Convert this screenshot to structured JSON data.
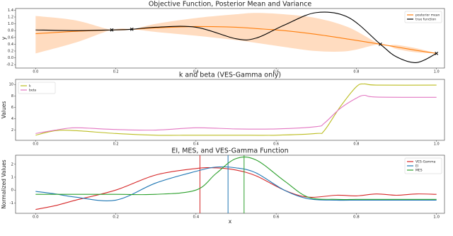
{
  "chart_data": [
    {
      "type": "line",
      "title": "Objective Function, Posterior Mean and Variance",
      "ylabel": "y",
      "x": [
        0,
        0.1,
        0.19,
        0.24,
        0.3,
        0.4,
        0.5,
        0.55,
        0.62,
        0.7,
        0.78,
        0.86,
        0.9,
        0.95,
        1.0
      ],
      "series": [
        {
          "name": "posterior mean",
          "color": "#ff7f0e",
          "values": [
            0.71,
            0.78,
            0.82,
            0.84,
            0.88,
            0.92,
            0.9,
            0.86,
            0.8,
            0.69,
            0.55,
            0.4,
            0.32,
            0.22,
            0.13
          ]
        },
        {
          "name": "true function",
          "color": "#000000",
          "values": [
            0.82,
            0.8,
            0.82,
            0.84,
            0.9,
            0.9,
            0.56,
            0.58,
            0.96,
            1.33,
            1.19,
            0.4,
            0.03,
            -0.14,
            0.13
          ]
        }
      ],
      "band": {
        "color": "#ffd3b0",
        "upper": [
          1.23,
          1.1,
          0.82,
          0.84,
          1.0,
          1.17,
          1.28,
          1.32,
          1.28,
          1.17,
          0.9,
          0.4,
          0.38,
          0.28,
          0.13
        ],
        "lower": [
          0.13,
          0.45,
          0.82,
          0.84,
          0.76,
          0.65,
          0.52,
          0.44,
          0.32,
          0.2,
          0.2,
          0.4,
          0.26,
          0.16,
          0.13
        ]
      },
      "observations": {
        "color": "#000000",
        "x": [
          0.19,
          0.24,
          0.86,
          1.0
        ],
        "y": [
          0.82,
          0.84,
          0.4,
          0.13
        ]
      },
      "xlim": [
        -0.05,
        1.02
      ],
      "ylim": [
        -0.3,
        1.45
      ],
      "xticks": [
        {
          "value": 0,
          "label": "0.0"
        },
        0.2,
        0.4,
        0.6,
        0.8,
        {
          "value": 1,
          "label": "1.0"
        }
      ],
      "yticks": [
        1.4,
        1.2,
        {
          "value": 1,
          "label": "1.0"
        },
        0.8,
        0.6,
        0.4,
        0.2,
        {
          "value": 0,
          "label": "0.0"
        },
        -0.2
      ],
      "legend": "upper right"
    },
    {
      "type": "line",
      "title": "k and beta (VES-Gamma only)",
      "ylabel": "Values",
      "x": [
        0,
        0.05,
        0.1,
        0.2,
        0.3,
        0.4,
        0.5,
        0.6,
        0.7,
        0.72,
        0.76,
        0.8,
        0.82,
        0.85,
        1.0
      ],
      "series": [
        {
          "name": "k",
          "color": "#bcbd22",
          "values": [
            1.1,
            1.9,
            1.9,
            1.4,
            1.1,
            1.1,
            1.1,
            1.1,
            1.4,
            1.9,
            6.1,
            9.6,
            10.1,
            9.9,
            9.9
          ]
        },
        {
          "name": "beta",
          "color": "#e377c2",
          "values": [
            1.4,
            2.0,
            2.4,
            2.1,
            2.0,
            2.4,
            2.2,
            2.2,
            2.6,
            3.2,
            5.8,
            7.6,
            8.1,
            7.8,
            7.75
          ]
        }
      ],
      "xlim": [
        -0.05,
        1.02
      ],
      "ylim": [
        0.2,
        10.9
      ],
      "xticks": [
        {
          "value": 0,
          "label": "0.0"
        },
        0.2,
        0.4,
        0.6,
        0.8,
        {
          "value": 1,
          "label": "1.0"
        }
      ],
      "yticks": [
        2,
        4,
        6,
        8,
        10
      ],
      "legend": "upper left"
    },
    {
      "type": "line",
      "title": "EI, MES, and VES-Gamma Function",
      "xlabel": "x",
      "ylabel": "Normalized Values",
      "x": [
        0,
        0.05,
        0.1,
        0.2,
        0.3,
        0.4,
        0.45,
        0.5,
        0.55,
        0.62,
        0.68,
        0.75,
        0.8,
        0.85,
        0.9,
        0.95,
        1.0
      ],
      "series": [
        {
          "name": "VES-Gamma",
          "color": "#d62728",
          "vline": 0.41,
          "values": [
            -1.5,
            -1.2,
            -0.78,
            0,
            1.17,
            1.67,
            1.72,
            1.55,
            1.1,
            0,
            -0.55,
            -0.4,
            -0.45,
            -0.3,
            -0.4,
            -0.3,
            -0.33
          ]
        },
        {
          "name": "EI",
          "color": "#1f77b4",
          "vline": 0.48,
          "values": [
            -0.1,
            -0.3,
            -0.55,
            -0.78,
            0.55,
            1.45,
            1.78,
            1.72,
            1.33,
            0,
            -0.67,
            -0.78,
            -0.78,
            -0.78,
            -0.78,
            -0.78,
            -0.78
          ]
        },
        {
          "name": "MES",
          "color": "#2ca02c",
          "vline": 0.52,
          "values": [
            -0.33,
            -0.33,
            -0.33,
            -0.33,
            -0.33,
            0,
            1.28,
            2.44,
            2.33,
            0.72,
            -0.55,
            -0.72,
            -0.72,
            -0.72,
            -0.72,
            -0.72,
            -0.72
          ]
        }
      ],
      "xlim": [
        -0.05,
        1.02
      ],
      "ylim": [
        -1.8,
        2.7
      ],
      "xticks": [
        {
          "value": 0,
          "label": "0.0"
        },
        0.2,
        0.4,
        0.6,
        0.8,
        {
          "value": 1,
          "label": "1.0"
        }
      ],
      "yticks": [
        -1,
        0,
        1,
        2
      ],
      "legend": "upper right"
    }
  ]
}
